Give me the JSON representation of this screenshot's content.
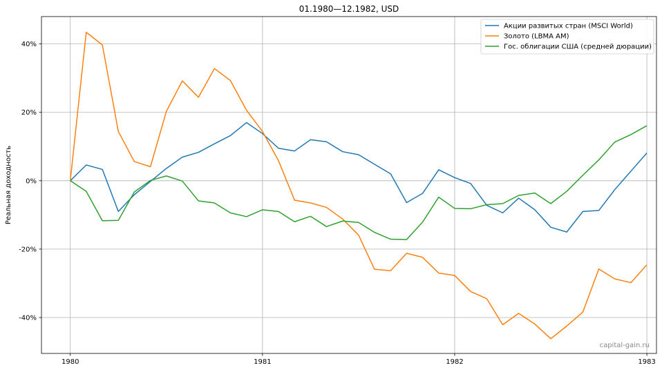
{
  "chart_data": {
    "type": "line",
    "title": "01.1980—12.1982, USD",
    "ylabel": "Реальная доходность",
    "xlabel": "",
    "xlim": [
      1979.85,
      1983.05
    ],
    "ylim": [
      -50.5,
      48
    ],
    "x_ticks": [
      1980,
      1981,
      1982,
      1983
    ],
    "x_tick_labels": [
      "1980",
      "1981",
      "1982",
      "1983"
    ],
    "y_ticks": [
      -40,
      -20,
      0,
      20,
      40
    ],
    "y_tick_labels": [
      "-40%",
      "-20%",
      "0%",
      "20%",
      "40%"
    ],
    "grid": true,
    "legend_position": "top-right",
    "x": [
      1980.0,
      1980.083,
      1980.167,
      1980.25,
      1980.333,
      1980.417,
      1980.5,
      1980.583,
      1980.667,
      1980.75,
      1980.833,
      1980.917,
      1981.0,
      1981.083,
      1981.167,
      1981.25,
      1981.333,
      1981.417,
      1981.5,
      1981.583,
      1981.667,
      1981.75,
      1981.833,
      1981.917,
      1982.0,
      1982.083,
      1982.167,
      1982.25,
      1982.333,
      1982.417,
      1982.5,
      1982.583,
      1982.667,
      1982.75,
      1982.833,
      1982.917,
      1983.0
    ],
    "series": [
      {
        "name": "Акции развитых стран (MSCI World)",
        "color": "#1f77b4",
        "values": [
          0,
          4.6,
          3.3,
          -9.0,
          -4.1,
          -0.2,
          3.6,
          6.9,
          8.3,
          10.8,
          13.2,
          17.0,
          13.8,
          9.5,
          8.7,
          12.0,
          11.4,
          8.5,
          7.6,
          4.8,
          2.0,
          -6.4,
          -3.7,
          3.2,
          0.9,
          -0.8,
          -7.2,
          -9.4,
          -5.1,
          -8.5,
          -13.6,
          -15.0,
          -9.0,
          -8.7,
          -2.6,
          2.8,
          8.1
        ]
      },
      {
        "name": "Золото (LBMA AM)",
        "color": "#ff7f0e",
        "values": [
          0,
          43.4,
          39.7,
          14.4,
          5.6,
          4.1,
          20.3,
          29.2,
          24.4,
          32.8,
          29.3,
          20.6,
          14.4,
          5.9,
          -5.7,
          -6.5,
          -7.8,
          -11.2,
          -15.9,
          -25.9,
          -26.3,
          -21.2,
          -22.4,
          -27.0,
          -27.7,
          -32.4,
          -34.5,
          -42.1,
          -38.8,
          -41.9,
          -46.2,
          -42.5,
          -38.4,
          -25.8,
          -28.7,
          -29.8,
          -24.6
        ]
      },
      {
        "name": "Гос. облигации США (средней дюрации)",
        "color": "#2ca02c",
        "values": [
          0,
          -3.1,
          -11.7,
          -11.6,
          -3.3,
          0.1,
          1.4,
          -0.1,
          -5.9,
          -6.5,
          -9.4,
          -10.5,
          -8.5,
          -9.0,
          -12.0,
          -10.4,
          -13.4,
          -11.8,
          -12.2,
          -15.1,
          -17.1,
          -17.2,
          -12.1,
          -4.8,
          -8.1,
          -8.2,
          -7.0,
          -6.7,
          -4.3,
          -3.6,
          -6.7,
          -3.1,
          1.6,
          6.1,
          11.3,
          13.5,
          16.1
        ]
      }
    ]
  },
  "watermark": "capital-gain.ru"
}
